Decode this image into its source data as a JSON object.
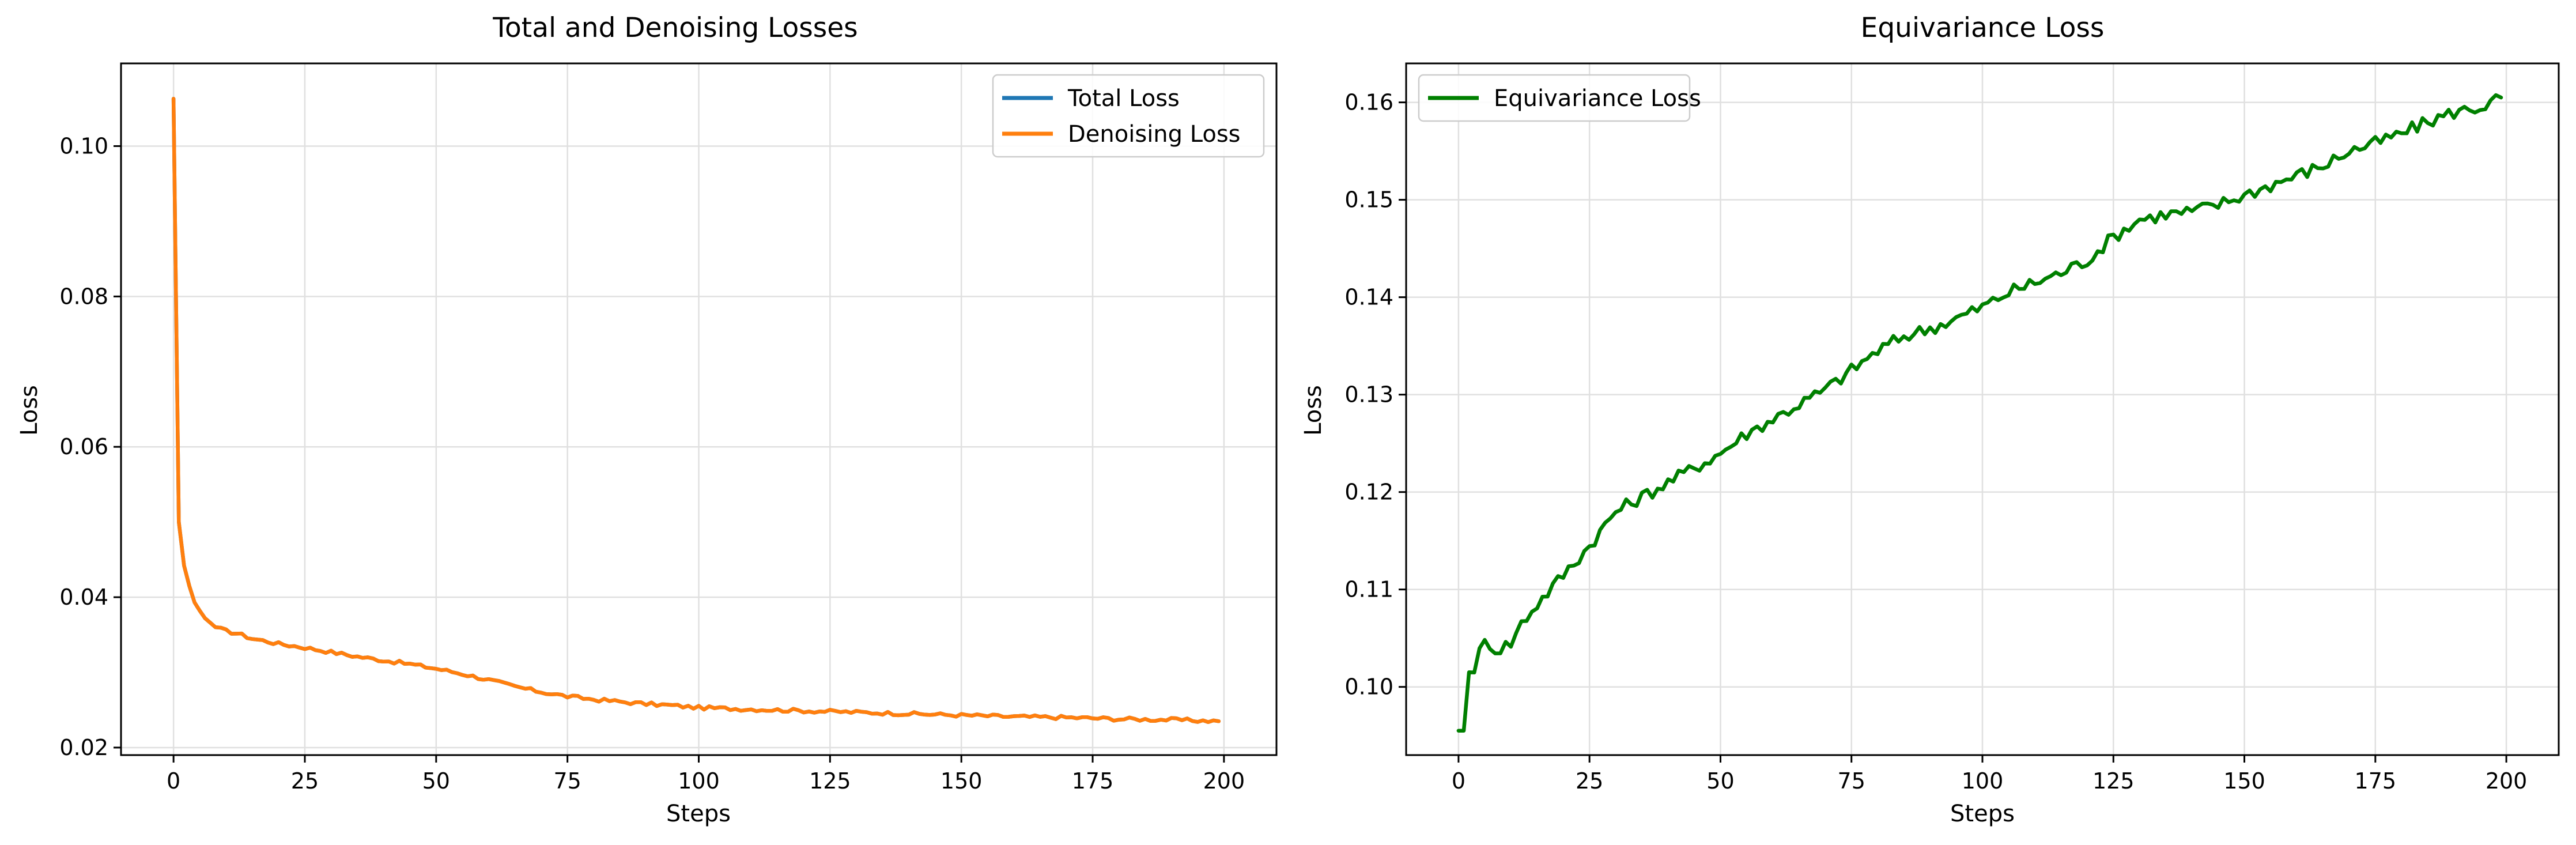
{
  "chart_data": [
    {
      "type": "line",
      "title": "Total and Denoising Losses",
      "xlabel": "Steps",
      "ylabel": "Loss",
      "xlim": [
        -10,
        210
      ],
      "ylim": [
        0.019,
        0.111
      ],
      "xticks": [
        0,
        25,
        50,
        75,
        100,
        125,
        150,
        175,
        200
      ],
      "yticks": [
        0.02,
        0.04,
        0.06,
        0.08,
        0.1
      ],
      "ytick_labels": [
        "0.02",
        "0.04",
        "0.06",
        "0.08",
        "0.10"
      ],
      "grid": true,
      "legend_position": "top-right",
      "x_keys": [
        0,
        1,
        2,
        3,
        4,
        5,
        6,
        7,
        8,
        10,
        12,
        15,
        18,
        20,
        25,
        30,
        35,
        40,
        45,
        50,
        55,
        60,
        65,
        70,
        75,
        80,
        85,
        90,
        95,
        100,
        110,
        120,
        130,
        140,
        150,
        160,
        170,
        180,
        190,
        199
      ],
      "series": [
        {
          "name": "Total Loss",
          "color": "#1f77b4",
          "values": [
            0.1063,
            0.05,
            0.0442,
            0.0415,
            0.0393,
            0.0382,
            0.0372,
            0.0366,
            0.036,
            0.0355,
            0.0352,
            0.0345,
            0.0341,
            0.0338,
            0.0333,
            0.0327,
            0.0321,
            0.0316,
            0.0311,
            0.0305,
            0.0298,
            0.029,
            0.0281,
            0.0274,
            0.0268,
            0.0264,
            0.0261,
            0.0258,
            0.0256,
            0.0253,
            0.0251,
            0.0249,
            0.0247,
            0.0245,
            0.0243,
            0.0241,
            0.024,
            0.0238,
            0.0237,
            0.0235
          ],
          "noise": 0.00025
        },
        {
          "name": "Denoising Loss",
          "color": "#ff7f0e",
          "values": [
            0.1063,
            0.05,
            0.0442,
            0.0415,
            0.0393,
            0.0382,
            0.0372,
            0.0366,
            0.036,
            0.0355,
            0.0352,
            0.0345,
            0.0341,
            0.0338,
            0.0333,
            0.0327,
            0.0321,
            0.0316,
            0.0311,
            0.0305,
            0.0298,
            0.029,
            0.0281,
            0.0274,
            0.0268,
            0.0264,
            0.0261,
            0.0258,
            0.0256,
            0.0253,
            0.0251,
            0.0249,
            0.0247,
            0.0245,
            0.0243,
            0.0241,
            0.024,
            0.0238,
            0.0237,
            0.0235
          ],
          "noise": 0.00025
        }
      ]
    },
    {
      "type": "line",
      "title": "Equivariance Loss",
      "xlabel": "Steps",
      "ylabel": "Loss",
      "xlim": [
        -10,
        210
      ],
      "ylim": [
        0.093,
        0.164
      ],
      "xticks": [
        0,
        25,
        50,
        75,
        100,
        125,
        150,
        175,
        200
      ],
      "yticks": [
        0.1,
        0.11,
        0.12,
        0.13,
        0.14,
        0.15,
        0.16
      ],
      "ytick_labels": [
        "0.10",
        "0.11",
        "0.12",
        "0.13",
        "0.14",
        "0.15",
        "0.16"
      ],
      "grid": true,
      "legend_position": "top-left",
      "x_keys": [
        0,
        1,
        2,
        3,
        4,
        5,
        6,
        7,
        8,
        10,
        12,
        15,
        20,
        25,
        30,
        35,
        40,
        45,
        50,
        55,
        60,
        65,
        70,
        75,
        80,
        85,
        90,
        95,
        100,
        105,
        110,
        115,
        120,
        125,
        130,
        135,
        140,
        145,
        150,
        155,
        160,
        165,
        170,
        175,
        180,
        185,
        190,
        195,
        199
      ],
      "series": [
        {
          "name": "Equivariance Loss",
          "color": "#008000",
          "values": [
            0.0955,
            0.0955,
            0.1015,
            0.102,
            0.1035,
            0.1045,
            0.1045,
            0.1038,
            0.104,
            0.1045,
            0.1065,
            0.1085,
            0.1115,
            0.1145,
            0.118,
            0.1195,
            0.121,
            0.1225,
            0.124,
            0.126,
            0.1275,
            0.129,
            0.1305,
            0.1325,
            0.1345,
            0.136,
            0.1368,
            0.1378,
            0.139,
            0.1405,
            0.1415,
            0.1425,
            0.1438,
            0.1462,
            0.148,
            0.1485,
            0.1488,
            0.1495,
            0.1505,
            0.1515,
            0.1525,
            0.1535,
            0.155,
            0.1558,
            0.1568,
            0.158,
            0.159,
            0.1595,
            0.1605
          ],
          "noise": 0.0007
        }
      ]
    }
  ]
}
